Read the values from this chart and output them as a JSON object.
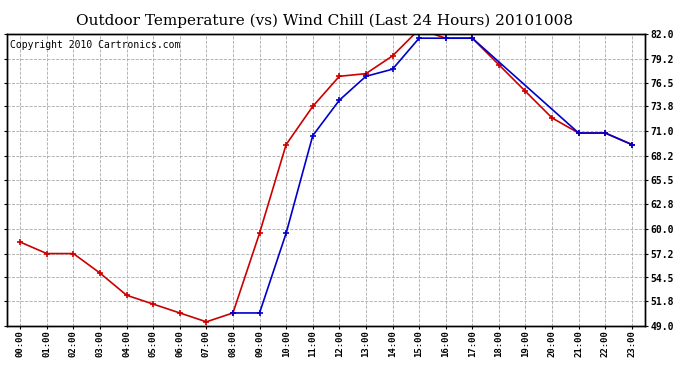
{
  "title": "Outdoor Temperature (vs) Wind Chill (Last 24 Hours) 20101008",
  "copyright": "Copyright 2010 Cartronics.com",
  "x_labels": [
    "00:00",
    "01:00",
    "02:00",
    "03:00",
    "04:00",
    "05:00",
    "06:00",
    "07:00",
    "08:00",
    "09:00",
    "10:00",
    "11:00",
    "12:00",
    "13:00",
    "14:00",
    "15:00",
    "16:00",
    "17:00",
    "18:00",
    "19:00",
    "20:00",
    "21:00",
    "22:00",
    "23:00"
  ],
  "temp_data": [
    58.5,
    57.2,
    57.2,
    55.0,
    52.5,
    51.5,
    50.5,
    49.5,
    50.5,
    59.5,
    69.5,
    73.8,
    77.2,
    77.5,
    79.5,
    82.5,
    81.5,
    81.5,
    78.5,
    75.5,
    72.5,
    70.8,
    70.8,
    69.5
  ],
  "windchill_data": [
    null,
    null,
    null,
    null,
    null,
    null,
    null,
    null,
    50.5,
    50.5,
    59.5,
    70.5,
    74.5,
    77.2,
    78.0,
    81.5,
    81.5,
    81.5,
    null,
    null,
    null,
    70.8,
    70.8,
    69.5
  ],
  "temp_color": "#cc0000",
  "windchill_color": "#0000cc",
  "bg_color": "#ffffff",
  "plot_bg_color": "#ffffff",
  "grid_color": "#aaaaaa",
  "ylim_min": 49.0,
  "ylim_max": 82.0,
  "yticks": [
    49.0,
    51.8,
    54.5,
    57.2,
    60.0,
    62.8,
    65.5,
    68.2,
    71.0,
    73.8,
    76.5,
    79.2,
    82.0
  ],
  "ytick_labels": [
    "49.0",
    "51.8",
    "54.5",
    "57.2",
    "60.0",
    "62.8",
    "65.5",
    "68.2",
    "71.0",
    "73.8",
    "76.5",
    "79.2",
    "82.0"
  ],
  "title_fontsize": 11,
  "copyright_fontsize": 7
}
